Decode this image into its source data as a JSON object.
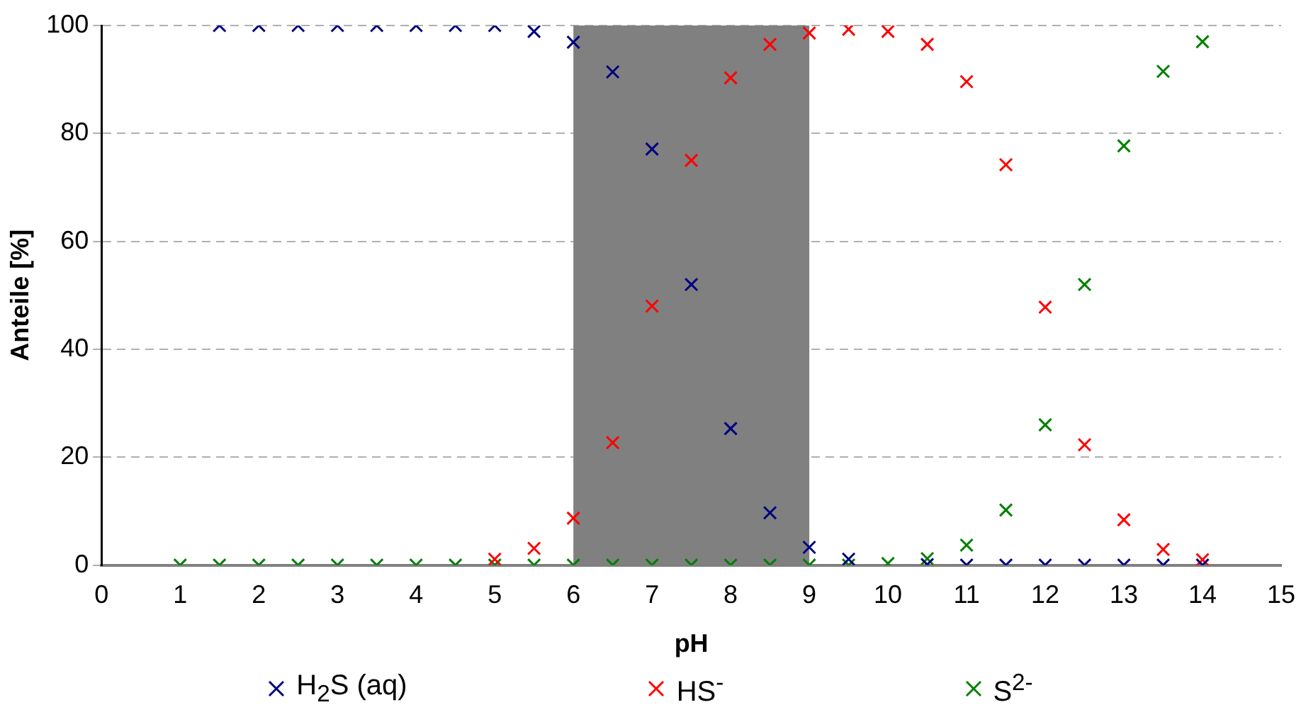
{
  "chart_data": {
    "type": "scatter",
    "xlabel": "pH",
    "ylabel": "Anteile [%]",
    "xlim": [
      0,
      15
    ],
    "xticks": [
      0,
      1,
      2,
      3,
      4,
      5,
      6,
      7,
      8,
      9,
      10,
      11,
      12,
      13,
      14,
      15
    ],
    "ylim": [
      0,
      100
    ],
    "yticks": [
      0,
      20,
      40,
      60,
      80,
      100
    ],
    "grid": "y",
    "legend": "bottom",
    "marker": "cross",
    "bands": [
      {
        "axis": "x",
        "from": 6,
        "to": 9,
        "color": "#808080"
      }
    ],
    "series": [
      {
        "name": "H$_{2}$S (aq)",
        "color": "#000080",
        "x": [
          1.5,
          2,
          2.5,
          3,
          3.5,
          4,
          4.5,
          5,
          5.5,
          6,
          6.5,
          7,
          7.5,
          8,
          8.5,
          9,
          9.5,
          10.5,
          11,
          11.5,
          12,
          12.5,
          13,
          13.5,
          14
        ],
        "values": [
          100,
          100,
          100,
          100,
          100,
          100,
          100,
          100,
          98.9,
          96.9,
          91.4,
          77.1,
          52,
          25.3,
          9.7,
          3.3,
          1.1,
          0.1,
          0,
          0,
          0,
          0,
          0,
          0,
          0
        ]
      },
      {
        "name": "HS$^{-}$",
        "color": "#ff0000",
        "x": [
          5,
          5.5,
          6,
          6.5,
          7,
          7.5,
          8,
          8.5,
          9,
          9.5,
          10,
          10.5,
          11,
          11.5,
          12,
          12.5,
          13,
          13.5,
          14
        ],
        "values": [
          1.1,
          3.1,
          8.7,
          22.7,
          48,
          75,
          90.3,
          96.5,
          98.6,
          99.3,
          98.9,
          96.5,
          89.6,
          74.2,
          47.8,
          22.3,
          8.4,
          2.9,
          1
        ]
      },
      {
        "name": "S$^{2-}$",
        "color": "#008000",
        "x": [
          1,
          1.5,
          2,
          2.5,
          3,
          3.5,
          4,
          4.5,
          5,
          5.5,
          6,
          6.5,
          7,
          7.5,
          8,
          8.5,
          9,
          9.5,
          10,
          10.5,
          11,
          11.5,
          12,
          12.5,
          13,
          13.5,
          14
        ],
        "values": [
          0,
          0,
          0,
          0,
          0,
          0,
          0,
          0,
          0,
          0,
          0,
          0,
          0,
          0,
          0,
          0,
          0,
          0,
          0.3,
          1.2,
          3.7,
          10.2,
          26,
          52,
          77.7,
          91.5,
          97
        ]
      }
    ]
  }
}
